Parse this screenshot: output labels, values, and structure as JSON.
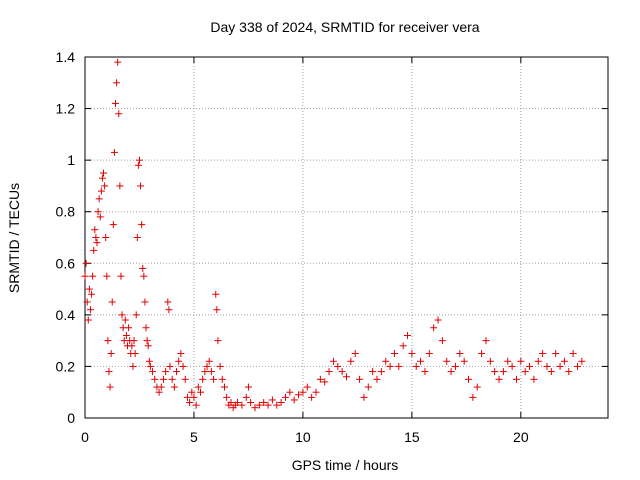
{
  "chart_data": {
    "type": "scatter",
    "title": "Day 338 of 2024, SRMTID for receiver vera",
    "xlabel": "GPS time / hours",
    "ylabel": "SRMTID / TECUs",
    "xlim": [
      0,
      24
    ],
    "ylim": [
      0,
      1.4
    ],
    "xticks": [
      0,
      5,
      10,
      15,
      20
    ],
    "yticks": [
      0,
      0.2,
      0.4,
      0.6,
      0.8,
      1.0,
      1.2,
      1.4
    ],
    "xtick_labels": [
      "0",
      "5",
      "10",
      "15",
      "20"
    ],
    "ytick_labels": [
      "0",
      "0.2",
      "0.4",
      "0.6",
      "0.8",
      "1",
      "1.2",
      "1.4"
    ],
    "grid": true,
    "marker": "+",
    "color": "#ff0000",
    "series": [
      {
        "name": "SRMTID",
        "points": [
          [
            0.0,
            0.55
          ],
          [
            0.05,
            0.6
          ],
          [
            0.1,
            0.45
          ],
          [
            0.15,
            0.38
          ],
          [
            0.2,
            0.5
          ],
          [
            0.25,
            0.42
          ],
          [
            0.3,
            0.48
          ],
          [
            0.35,
            0.55
          ],
          [
            0.4,
            0.65
          ],
          [
            0.45,
            0.73
          ],
          [
            0.5,
            0.7
          ],
          [
            0.55,
            0.68
          ],
          [
            0.6,
            0.8
          ],
          [
            0.65,
            0.85
          ],
          [
            0.7,
            0.78
          ],
          [
            0.75,
            0.88
          ],
          [
            0.8,
            0.93
          ],
          [
            0.85,
            0.95
          ],
          [
            0.9,
            0.9
          ],
          [
            0.95,
            0.7
          ],
          [
            1.0,
            0.55
          ],
          [
            1.05,
            0.3
          ],
          [
            1.1,
            0.18
          ],
          [
            1.15,
            0.12
          ],
          [
            1.2,
            0.25
          ],
          [
            1.25,
            0.45
          ],
          [
            1.3,
            0.75
          ],
          [
            1.35,
            1.03
          ],
          [
            1.4,
            1.22
          ],
          [
            1.45,
            1.3
          ],
          [
            1.5,
            1.38
          ],
          [
            1.55,
            1.18
          ],
          [
            1.6,
            0.9
          ],
          [
            1.65,
            0.55
          ],
          [
            1.7,
            0.4
          ],
          [
            1.75,
            0.35
          ],
          [
            1.8,
            0.3
          ],
          [
            1.85,
            0.38
          ],
          [
            1.9,
            0.32
          ],
          [
            1.95,
            0.28
          ],
          [
            2.0,
            0.35
          ],
          [
            2.05,
            0.3
          ],
          [
            2.1,
            0.25
          ],
          [
            2.15,
            0.28
          ],
          [
            2.2,
            0.2
          ],
          [
            2.25,
            0.3
          ],
          [
            2.3,
            0.25
          ],
          [
            2.35,
            0.4
          ],
          [
            2.4,
            0.7
          ],
          [
            2.45,
            0.98
          ],
          [
            2.5,
            1.0
          ],
          [
            2.55,
            0.9
          ],
          [
            2.6,
            0.75
          ],
          [
            2.65,
            0.58
          ],
          [
            2.7,
            0.55
          ],
          [
            2.75,
            0.45
          ],
          [
            2.8,
            0.35
          ],
          [
            2.85,
            0.3
          ],
          [
            2.9,
            0.28
          ],
          [
            2.95,
            0.22
          ],
          [
            3.0,
            0.2
          ],
          [
            3.1,
            0.18
          ],
          [
            3.2,
            0.15
          ],
          [
            3.3,
            0.12
          ],
          [
            3.4,
            0.1
          ],
          [
            3.5,
            0.12
          ],
          [
            3.6,
            0.15
          ],
          [
            3.7,
            0.18
          ],
          [
            3.8,
            0.45
          ],
          [
            3.85,
            0.42
          ],
          [
            3.9,
            0.2
          ],
          [
            4.0,
            0.15
          ],
          [
            4.1,
            0.12
          ],
          [
            4.2,
            0.18
          ],
          [
            4.3,
            0.22
          ],
          [
            4.4,
            0.25
          ],
          [
            4.5,
            0.2
          ],
          [
            4.6,
            0.15
          ],
          [
            4.7,
            0.08
          ],
          [
            4.8,
            0.06
          ],
          [
            4.9,
            0.1
          ],
          [
            5.0,
            0.08
          ],
          [
            5.1,
            0.05
          ],
          [
            5.2,
            0.12
          ],
          [
            5.3,
            0.1
          ],
          [
            5.4,
            0.15
          ],
          [
            5.5,
            0.18
          ],
          [
            5.6,
            0.2
          ],
          [
            5.7,
            0.22
          ],
          [
            5.8,
            0.18
          ],
          [
            5.9,
            0.15
          ],
          [
            6.0,
            0.48
          ],
          [
            6.05,
            0.42
          ],
          [
            6.1,
            0.3
          ],
          [
            6.2,
            0.2
          ],
          [
            6.3,
            0.15
          ],
          [
            6.4,
            0.12
          ],
          [
            6.5,
            0.08
          ],
          [
            6.6,
            0.05
          ],
          [
            6.7,
            0.06
          ],
          [
            6.8,
            0.04
          ],
          [
            6.9,
            0.05
          ],
          [
            7.0,
            0.06
          ],
          [
            7.2,
            0.05
          ],
          [
            7.4,
            0.08
          ],
          [
            7.5,
            0.12
          ],
          [
            7.6,
            0.06
          ],
          [
            7.8,
            0.04
          ],
          [
            8.0,
            0.05
          ],
          [
            8.2,
            0.06
          ],
          [
            8.4,
            0.05
          ],
          [
            8.6,
            0.07
          ],
          [
            8.8,
            0.05
          ],
          [
            9.0,
            0.06
          ],
          [
            9.2,
            0.08
          ],
          [
            9.4,
            0.1
          ],
          [
            9.6,
            0.07
          ],
          [
            9.8,
            0.09
          ],
          [
            10.0,
            0.1
          ],
          [
            10.2,
            0.12
          ],
          [
            10.4,
            0.08
          ],
          [
            10.6,
            0.1
          ],
          [
            10.8,
            0.15
          ],
          [
            11.0,
            0.14
          ],
          [
            11.2,
            0.18
          ],
          [
            11.4,
            0.22
          ],
          [
            11.6,
            0.2
          ],
          [
            11.8,
            0.18
          ],
          [
            12.0,
            0.16
          ],
          [
            12.2,
            0.22
          ],
          [
            12.4,
            0.25
          ],
          [
            12.6,
            0.15
          ],
          [
            12.8,
            0.08
          ],
          [
            13.0,
            0.12
          ],
          [
            13.2,
            0.18
          ],
          [
            13.4,
            0.15
          ],
          [
            13.6,
            0.18
          ],
          [
            13.8,
            0.22
          ],
          [
            14.0,
            0.2
          ],
          [
            14.2,
            0.25
          ],
          [
            14.4,
            0.2
          ],
          [
            14.6,
            0.28
          ],
          [
            14.8,
            0.32
          ],
          [
            15.0,
            0.25
          ],
          [
            15.2,
            0.2
          ],
          [
            15.4,
            0.22
          ],
          [
            15.6,
            0.18
          ],
          [
            15.8,
            0.25
          ],
          [
            16.0,
            0.35
          ],
          [
            16.2,
            0.38
          ],
          [
            16.4,
            0.3
          ],
          [
            16.6,
            0.22
          ],
          [
            16.8,
            0.18
          ],
          [
            17.0,
            0.2
          ],
          [
            17.2,
            0.25
          ],
          [
            17.4,
            0.22
          ],
          [
            17.6,
            0.15
          ],
          [
            17.8,
            0.08
          ],
          [
            18.0,
            0.12
          ],
          [
            18.2,
            0.25
          ],
          [
            18.4,
            0.3
          ],
          [
            18.6,
            0.22
          ],
          [
            18.8,
            0.18
          ],
          [
            19.0,
            0.15
          ],
          [
            19.2,
            0.18
          ],
          [
            19.4,
            0.22
          ],
          [
            19.6,
            0.2
          ],
          [
            19.8,
            0.15
          ],
          [
            20.0,
            0.22
          ],
          [
            20.2,
            0.18
          ],
          [
            20.4,
            0.2
          ],
          [
            20.6,
            0.15
          ],
          [
            20.8,
            0.22
          ],
          [
            21.0,
            0.25
          ],
          [
            21.2,
            0.2
          ],
          [
            21.4,
            0.18
          ],
          [
            21.6,
            0.25
          ],
          [
            21.8,
            0.2
          ],
          [
            22.0,
            0.22
          ],
          [
            22.2,
            0.18
          ],
          [
            22.4,
            0.25
          ],
          [
            22.6,
            0.2
          ],
          [
            22.8,
            0.22
          ]
        ]
      }
    ]
  }
}
